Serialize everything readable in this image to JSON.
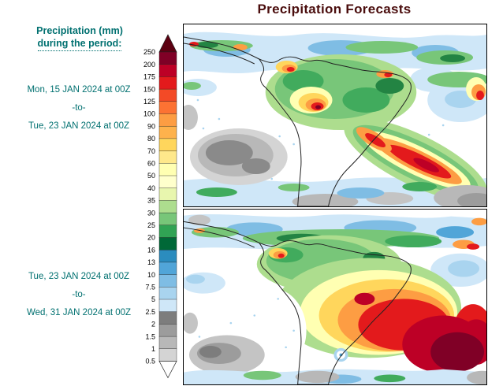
{
  "title": "Precipitation Forecasts",
  "sidebar": {
    "heading_line1": "Precipitation (mm)",
    "heading_line2": "during the period:",
    "periods": [
      {
        "start": "Mon, 15 JAN 2024 at 00Z",
        "separator": "-to-",
        "end": "Tue, 23 JAN 2024 at 00Z"
      },
      {
        "start": "Tue, 23 JAN 2024 at 00Z",
        "separator": "-to-",
        "end": "Wed, 31 JAN 2024 at 00Z"
      }
    ],
    "text_color": "#007070"
  },
  "colorbar": {
    "levels_top_to_bottom": [
      "250",
      "200",
      "175",
      "150",
      "125",
      "100",
      "90",
      "80",
      "70",
      "60",
      "50",
      "40",
      "35",
      "30",
      "25",
      "20",
      "16",
      "13",
      "10",
      "7.5",
      "5",
      "2.5",
      "2",
      "1.5",
      "1",
      "0.5"
    ],
    "segment_colors_top_to_bottom": [
      "#800026",
      "#bd0026",
      "#e31a1c",
      "#f34a26",
      "#fc7233",
      "#fd9d43",
      "#feb24c",
      "#ffd65c",
      "#fee88b",
      "#ffffb2",
      "#ffffcc",
      "#e8f6ae",
      "#addd8e",
      "#78c679",
      "#31a354",
      "#006837",
      "#2b8cbe",
      "#51a5d8",
      "#7fbde4",
      "#a9d4ef",
      "#cfe7f8",
      "#7d7d7d",
      "#9c9c9c",
      "#b8b8b8",
      "#d4d4d4"
    ],
    "over_arrow_color": "#5c0011",
    "under_arrow_color": "#ffffff"
  },
  "chart_data": {
    "type": "heatmap",
    "title": "Precipitation Forecasts",
    "variable": "Precipitation (mm) during the period",
    "region": "South America and adjacent oceans",
    "panels": [
      {
        "period_start": "Mon, 15 JAN 2024 at 00Z",
        "period_end": "Tue, 23 JAN 2024 at 00Z"
      },
      {
        "period_start": "Tue, 23 JAN 2024 at 00Z",
        "period_end": "Wed, 31 JAN 2024 at 00Z"
      }
    ],
    "color_scale": {
      "units": "mm",
      "levels": [
        0.5,
        1,
        1.5,
        2,
        2.5,
        5,
        7.5,
        10,
        13,
        16,
        20,
        25,
        30,
        35,
        40,
        50,
        60,
        70,
        80,
        90,
        100,
        125,
        150,
        175,
        200,
        250
      ],
      "colors_low_to_high": [
        "#d4d4d4",
        "#b8b8b8",
        "#9c9c9c",
        "#7d7d7d",
        "#cfe7f8",
        "#a9d4ef",
        "#7fbde4",
        "#51a5d8",
        "#2b8cbe",
        "#006837",
        "#31a354",
        "#78c679",
        "#addd8e",
        "#e8f6ae",
        "#ffffcc",
        "#ffffb2",
        "#fee88b",
        "#ffd65c",
        "#feb24c",
        "#fd9d43",
        "#fc7233",
        "#f34a26",
        "#e31a1c",
        "#bd0026",
        "#800026"
      ],
      "over_color": "#5c0011",
      "under_color": "#ffffff"
    },
    "legend_position": "left",
    "grid": false
  }
}
